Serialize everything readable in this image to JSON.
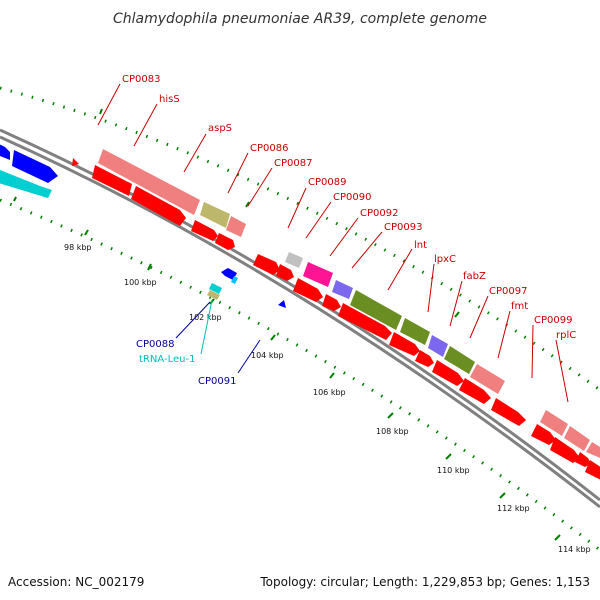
{
  "title": "Chlamydophila pneumoniae AR39, complete genome",
  "footer": {
    "accession": "Accession: NC_002179",
    "summary": "Topology: circular; Length: 1,229,853 bp; Genes: 1,153"
  },
  "colors": {
    "red_gene": "#ff0000",
    "pink_gene": "#f08080",
    "olive_gene": "#6b8e23",
    "khaki_gene": "#bdb76b",
    "blue_gene": "#0000ff",
    "cyan_gene": "#00ced1",
    "magenta_gene": "#ff1493",
    "slate_gene": "#7b68ee",
    "gray_gene": "#c0c0c0",
    "ruler": "#008000",
    "backbone": "#808080",
    "label_red": "#cc0000",
    "label_blue": "#000099",
    "label_cyan": "#00bfbf"
  },
  "kbp_ticks": [
    "98 kbp",
    "100 kbp",
    "102 kbp",
    "104 kbp",
    "106 kbp",
    "108 kbp",
    "110 kbp",
    "112 kbp",
    "114 kbp"
  ],
  "gene_labels_top": [
    {
      "name": "CP0083",
      "color": "red"
    },
    {
      "name": "hisS",
      "color": "red"
    },
    {
      "name": "aspS",
      "color": "red"
    },
    {
      "name": "CP0086",
      "color": "red"
    },
    {
      "name": "CP0087",
      "color": "red"
    },
    {
      "name": "CP0089",
      "color": "red"
    },
    {
      "name": "CP0090",
      "color": "red"
    },
    {
      "name": "CP0092",
      "color": "red"
    },
    {
      "name": "CP0093",
      "color": "red"
    },
    {
      "name": "lnt",
      "color": "red"
    },
    {
      "name": "lpxC",
      "color": "red"
    },
    {
      "name": "fabZ",
      "color": "red"
    },
    {
      "name": "CP0097",
      "color": "red"
    },
    {
      "name": "fmt",
      "color": "red"
    },
    {
      "name": "CP0099",
      "color": "red"
    },
    {
      "name": "rplC",
      "color": "red"
    }
  ],
  "gene_labels_bottom": [
    {
      "name": "CP0088",
      "color": "blue"
    },
    {
      "name": "tRNA-Leu-1",
      "color": "cyan"
    },
    {
      "name": "CP0091",
      "color": "blue"
    }
  ]
}
